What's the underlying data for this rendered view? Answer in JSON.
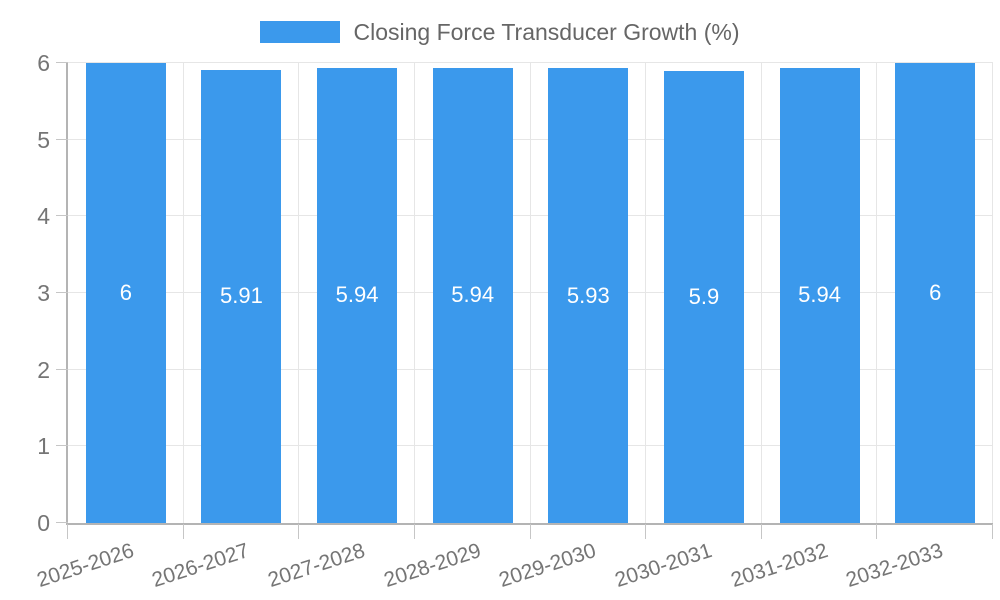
{
  "legend": {
    "label": "Closing Force Transducer Growth (%)",
    "swatch_color": "#3b99ec"
  },
  "chart_data": {
    "type": "bar",
    "title": "Closing Force Transducer Growth (%)",
    "categories": [
      "2025-2026",
      "2026-2027",
      "2027-2028",
      "2028-2029",
      "2029-2030",
      "2030-2031",
      "2031-2032",
      "2032-2033"
    ],
    "values": [
      6,
      5.91,
      5.94,
      5.94,
      5.93,
      5.9,
      5.94,
      6
    ],
    "value_labels": [
      "6",
      "5.91",
      "5.94",
      "5.94",
      "5.93",
      "5.9",
      "5.94",
      "6"
    ],
    "xlabel": "",
    "ylabel": "",
    "ylim": [
      0,
      6
    ],
    "yticks": [
      0,
      1,
      2,
      3,
      4,
      5,
      6
    ],
    "grid": true,
    "legend_position": "top-center",
    "bar_color": "#3b99ec",
    "value_label_color": "#ffffff",
    "axis_text_color": "#757575",
    "gridline_color": "#e6e6e6",
    "axis_line_color": "#b4b4b4"
  }
}
